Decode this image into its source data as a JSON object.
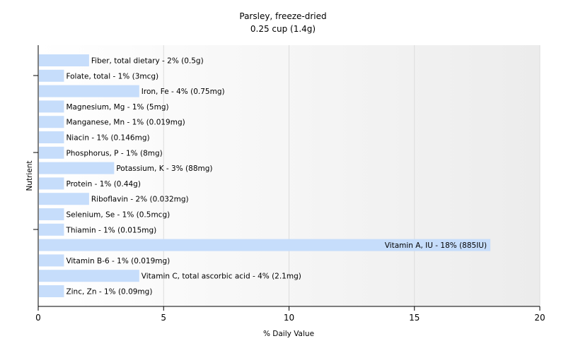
{
  "chart_data": {
    "type": "bar",
    "orientation": "horizontal",
    "title": "Parsley, freeze-dried",
    "subtitle": "0.25 cup (1.4g)",
    "xlabel": "% Daily Value",
    "ylabel": "Nutrient",
    "xlim": [
      0,
      20
    ],
    "xticks": [
      0,
      5,
      10,
      15,
      20
    ],
    "grid": true,
    "bar_color": "#c6ddfb",
    "categories": [
      "Fiber, total dietary",
      "Folate, total",
      "Iron, Fe",
      "Magnesium, Mg",
      "Manganese, Mn",
      "Niacin",
      "Phosphorus, P",
      "Potassium, K",
      "Protein",
      "Riboflavin",
      "Selenium, Se",
      "Thiamin",
      "Vitamin A, IU",
      "Vitamin B-6",
      "Vitamin C, total ascorbic acid",
      "Zinc, Zn"
    ],
    "values": [
      2,
      1,
      4,
      1,
      1,
      1,
      1,
      3,
      1,
      2,
      1,
      1,
      18,
      1,
      4,
      1
    ],
    "labels": [
      "Fiber, total dietary - 2% (0.5g)",
      "Folate, total - 1% (3mcg)",
      "Iron, Fe - 4% (0.75mg)",
      "Magnesium, Mg - 1% (5mg)",
      "Manganese, Mn - 1% (0.019mg)",
      "Niacin - 1% (0.146mg)",
      "Phosphorus, P - 1% (8mg)",
      "Potassium, K - 3% (88mg)",
      "Protein - 1% (0.44g)",
      "Riboflavin - 2% (0.032mg)",
      "Selenium, Se - 1% (0.5mcg)",
      "Thiamin - 1% (0.015mg)",
      "Vitamin A, IU - 18% (885IU)",
      "Vitamin B-6 - 1% (0.019mg)",
      "Vitamin C, total ascorbic acid - 4% (2.1mg)",
      "Zinc, Zn - 1% (0.09mg)"
    ]
  }
}
